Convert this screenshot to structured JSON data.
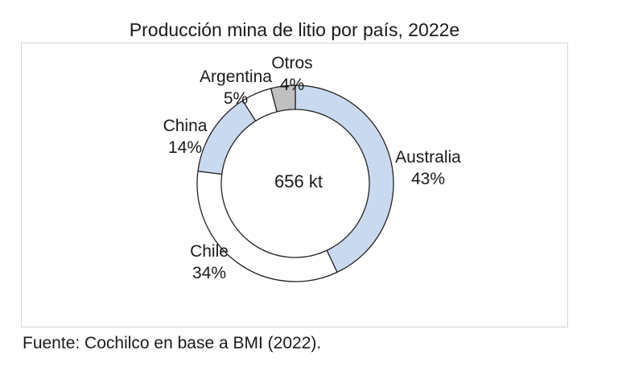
{
  "chart_data": {
    "type": "pie",
    "variant": "donut",
    "title": "Producción mina de litio por país, 2022e",
    "center_label": "656 kt",
    "slices": [
      {
        "name": "Australia",
        "value": 43,
        "value_label": "43%",
        "color": "#c9daf0"
      },
      {
        "name": "Chile",
        "value": 34,
        "value_label": "34%",
        "color": "#ffffff"
      },
      {
        "name": "China",
        "value": 14,
        "value_label": "14%",
        "color": "#c9daf0"
      },
      {
        "name": "Argentina",
        "value": 5,
        "value_label": "5%",
        "color": "#ffffff"
      },
      {
        "name": "Otros",
        "value": 4,
        "value_label": "4%",
        "color": "#c0c0c0"
      }
    ],
    "source": "Fuente: Cochilco en base a BMI (2022)."
  }
}
